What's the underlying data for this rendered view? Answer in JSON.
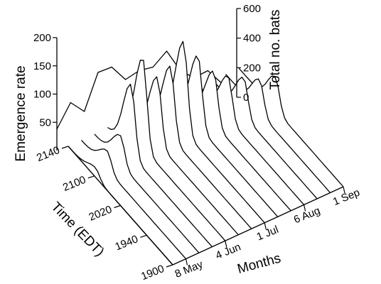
{
  "chart_data": {
    "type": "line",
    "view": "3d-waterfall",
    "title": "",
    "axes": {
      "z_label": "Emergence rate",
      "z_ticks": [
        "50",
        "100",
        "150",
        "200"
      ],
      "z_range": [
        0,
        200
      ],
      "time_label": "Time (EDT)",
      "time_ticks": [
        "1900",
        "1940",
        "2020",
        "2100",
        "2140"
      ],
      "month_label": "Months",
      "month_ticks": [
        "8 May",
        "4 Jun",
        "1 Jul",
        "6 Aug",
        "1 Sep"
      ],
      "total_label": "Total no. bats",
      "total_ticks": [
        "0",
        "200",
        "400",
        "600"
      ],
      "total_range": [
        0,
        600
      ]
    },
    "total_bats": {
      "name": "Total no. bats",
      "x": [
        1,
        2,
        3,
        4,
        5,
        6,
        7,
        8,
        9,
        10,
        11,
        12,
        13,
        14
      ],
      "values": [
        120,
        270,
        220,
        440,
        470,
        400,
        450,
        470,
        560,
        450,
        410,
        450,
        380,
        320
      ]
    },
    "emergence_profiles": [
      {
        "peak_time": "2058",
        "peak_rate": 20
      },
      {
        "peak_time": "2100",
        "peak_rate": 40
      },
      {
        "peak_time": "2100",
        "peak_rate": 60
      },
      {
        "peak_time": "2104",
        "peak_rate": 150
      },
      {
        "peak_time": "2106",
        "peak_rate": 190
      },
      {
        "peak_time": "2104",
        "peak_rate": 140
      },
      {
        "peak_time": "2104",
        "peak_rate": 150
      },
      {
        "peak_time": "2104",
        "peak_rate": 190
      },
      {
        "peak_time": "2102",
        "peak_rate": 150
      },
      {
        "peak_time": "2058",
        "peak_rate": 110
      },
      {
        "peak_time": "2056",
        "peak_rate": 90
      },
      {
        "peak_time": "2052",
        "peak_rate": 80
      },
      {
        "peak_time": "2048",
        "peak_rate": 70
      },
      {
        "peak_time": "2044",
        "peak_rate": 70
      }
    ]
  }
}
